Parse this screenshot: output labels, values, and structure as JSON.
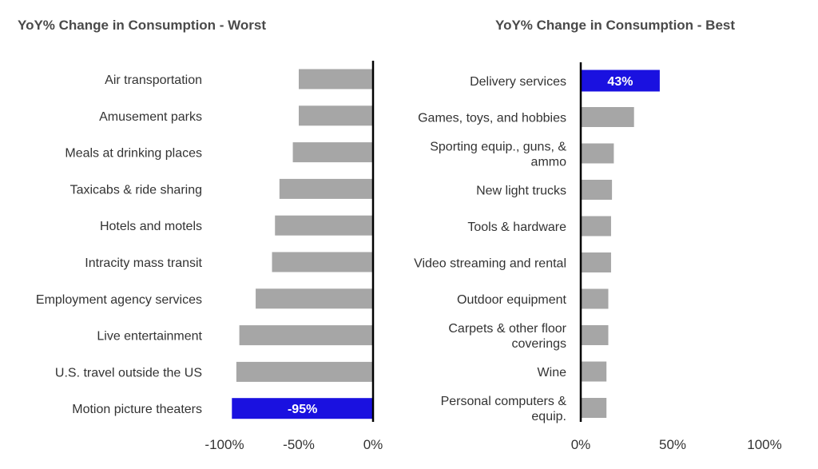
{
  "chart_data": [
    {
      "type": "bar",
      "orientation": "horizontal",
      "title": "YoY% Change in Consumption - Worst",
      "categories": [
        "Air transportation",
        "Amusement parks",
        "Meals at drinking places",
        "Taxicabs & ride sharing",
        "Hotels and motels",
        "Intracity mass transit",
        "Employment agency services",
        "Live entertainment",
        "U.S. travel outside the US",
        "Motion picture theaters"
      ],
      "values": [
        -50,
        -50,
        -54,
        -63,
        -66,
        -68,
        -79,
        -90,
        -92,
        -95
      ],
      "xlim": [
        -100,
        0
      ],
      "ticks": [
        -100,
        -50,
        0
      ],
      "tick_labels": [
        "-100%",
        "-50%",
        "0%"
      ],
      "highlight_index": 9,
      "data_label": "-95%",
      "bar_color": "#a6a6a6",
      "highlight_color": "#1a11e0",
      "grid": false
    },
    {
      "type": "bar",
      "orientation": "horizontal",
      "title": "YoY% Change in Consumption - Best",
      "categories": [
        "Delivery services",
        "Games, toys, and hobbies",
        "Sporting equip., guns, & ammo",
        "New light trucks",
        "Tools & hardware",
        "Video streaming and rental",
        "Outdoor equipment",
        "Carpets & other floor coverings",
        "Wine",
        "Personal computers & equip."
      ],
      "values": [
        43,
        29,
        18,
        17,
        16.5,
        16.5,
        15,
        15,
        14,
        14
      ],
      "xlim": [
        0,
        100
      ],
      "ticks": [
        0,
        50,
        100
      ],
      "tick_labels": [
        "0%",
        "50%",
        "100%"
      ],
      "highlight_index": 0,
      "data_label": "43%",
      "bar_color": "#a6a6a6",
      "highlight_color": "#1a11e0",
      "grid": false
    }
  ]
}
